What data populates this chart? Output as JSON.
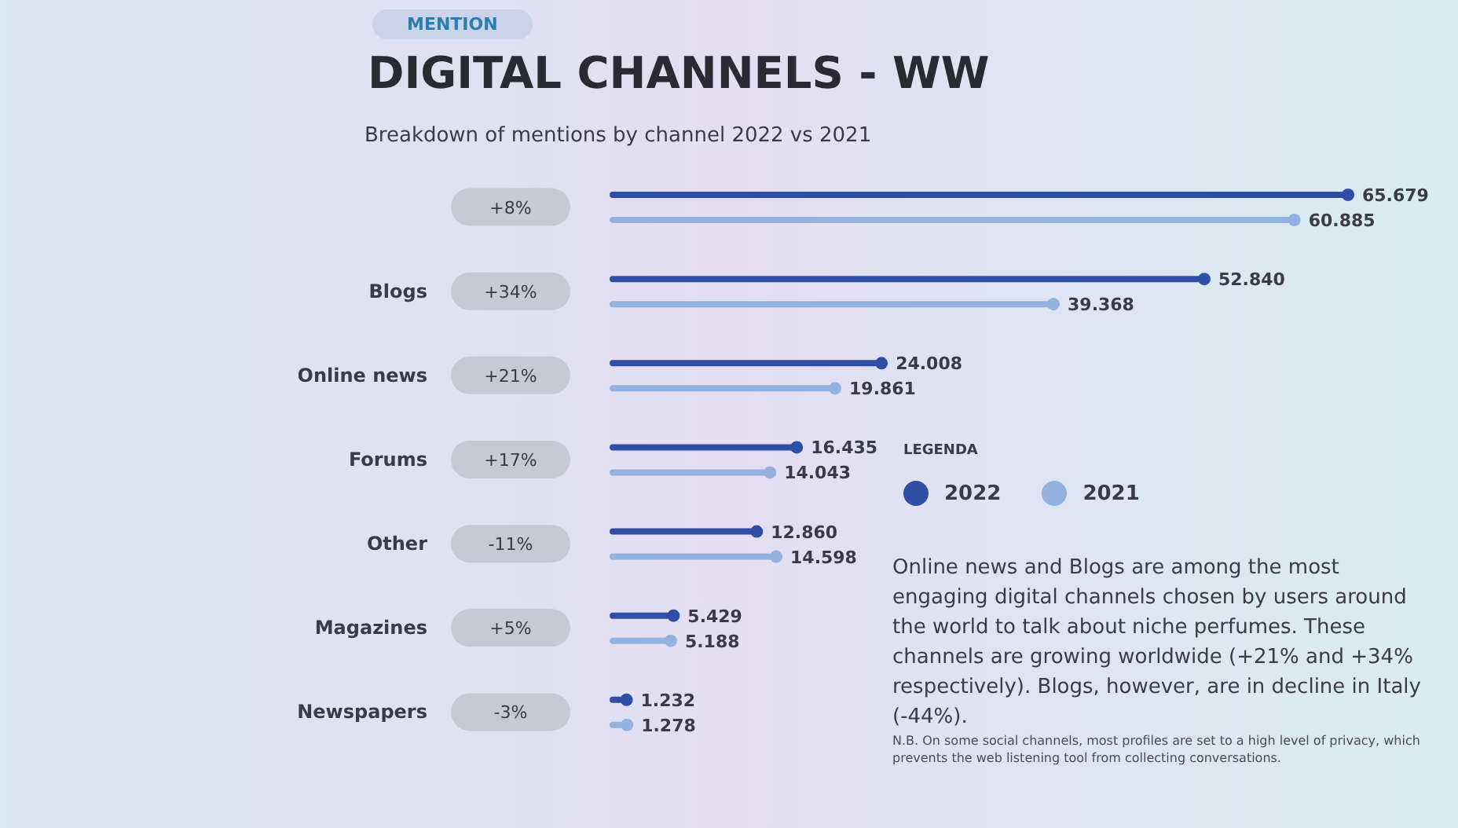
{
  "chart_data": {
    "type": "lollipop",
    "orientation": "horizontal",
    "title": "DIGITAL CHANNELS - WW",
    "subtitle": "Breakdown of mentions by channel 2022 vs 2021",
    "categories": [
      null,
      "Blogs",
      "Online news",
      "Forums",
      "Other",
      "Magazines",
      "Newspapers"
    ],
    "series": [
      {
        "name": "2022",
        "color": "#2f4ea6",
        "values": [
          65679,
          52840,
          24008,
          16435,
          12860,
          5429,
          1232
        ],
        "value_labels": [
          "65.679",
          "52.840",
          "24.008",
          "16.435",
          "12.860",
          "5.429",
          "1.232"
        ]
      },
      {
        "name": "2021",
        "color": "#93b2df",
        "values": [
          60885,
          39368,
          19861,
          14043,
          14598,
          5188,
          1278
        ],
        "value_labels": [
          "60.885",
          "39.368",
          "19.861",
          "14.043",
          "14.598",
          "5.188",
          "1.278"
        ]
      }
    ],
    "marker": "circle",
    "legend": "right",
    "legend_title": "LEGENDA",
    "tick_labels": "y",
    "annotations": [
      "MENTION",
      "+8%",
      "+34%",
      "+21%",
      "+17%",
      "-11%",
      "+5%",
      "-3%",
      "Online news and Blogs are among the most engaging digital channels chosen by users around the world to talk about niche perfumes. These channels are growing worldwide (+21% and +34% respectively). Blogs, however, are in decline in Italy (-44%).",
      "N.B. On some social channels, most profiles are set to a high level of privacy, which prevents the web listening tool from collecting conversations."
    ]
  }
}
